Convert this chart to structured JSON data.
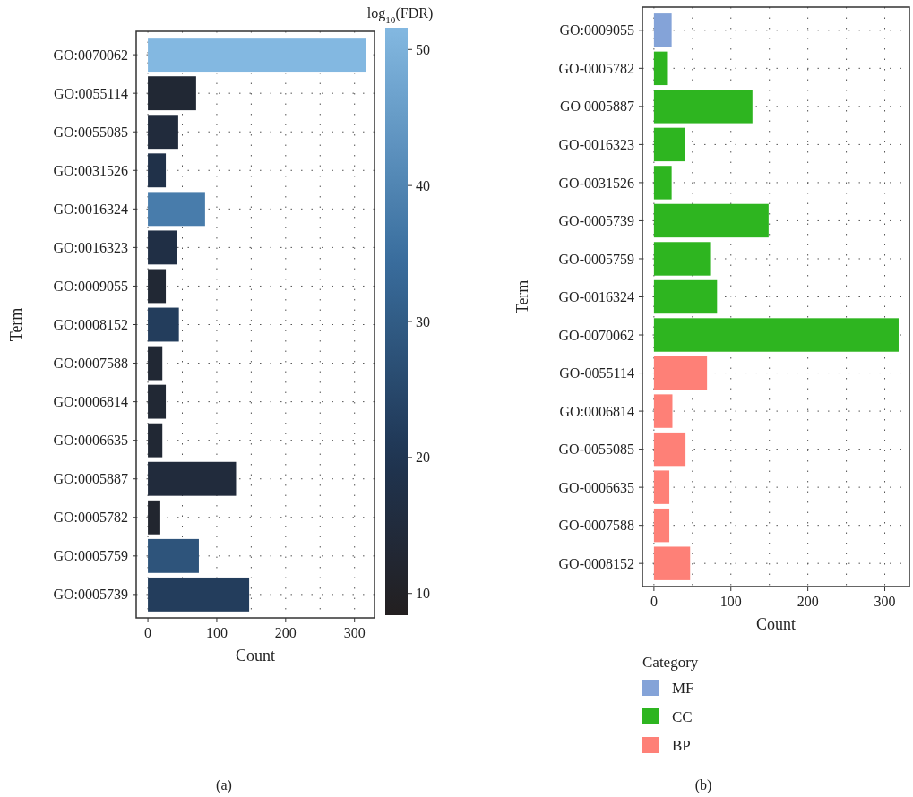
{
  "chart_data": [
    {
      "type": "bar",
      "orientation": "horizontal",
      "xlabel": "Count",
      "ylabel": "Term",
      "clabel": "−log$_{10}$(FDR)",
      "categories": [
        "GO:0070062",
        "GO:0055114",
        "GO:0055085",
        "GO:0031526",
        "GO:0016324",
        "GO:0016323",
        "GO:0009055",
        "GO:0008152",
        "GO:0007588",
        "GO:0006814",
        "GO:0006635",
        "GO:0005887",
        "GO:0005782",
        "GO:0005759",
        "GO:0005739"
      ],
      "values": [
        316,
        70,
        44,
        26,
        83,
        42,
        26,
        45,
        21,
        26,
        21,
        128,
        18,
        74,
        147
      ],
      "cvalues": [
        51.6,
        13,
        15,
        18,
        38,
        17,
        13,
        22,
        13,
        13,
        13,
        15,
        12,
        28,
        22
      ],
      "clim": [
        8.4,
        51.6
      ],
      "cticks": [
        10,
        20,
        30,
        40,
        50
      ],
      "xlim": [
        -17,
        329
      ],
      "xticks": [
        0,
        100,
        200,
        300
      ],
      "grid": true,
      "annotations": [
        "(a)"
      ]
    },
    {
      "type": "bar",
      "orientation": "horizontal",
      "xlabel": "Count",
      "ylabel": "Term",
      "legend_title": "Category",
      "legend": "bottom",
      "categories": [
        "GO:0009055",
        "GO-0005782",
        "GO 0005887",
        "GO-0016323",
        "GO-0031526",
        "GO-0005739",
        "GO-0005759",
        "GO-0016324",
        "GO-0070062",
        "GO-0055114",
        "GO:0006814",
        "GO-0055085",
        "GO-0006635",
        "GO-0007588",
        "GO-0008152"
      ],
      "series": [
        {
          "name": "MF",
          "color": "#84a3d8",
          "values": [
            23,
            null,
            null,
            null,
            null,
            null,
            null,
            null,
            null,
            null,
            null,
            null,
            null,
            null,
            null
          ]
        },
        {
          "name": "CC",
          "color": "#2eb520",
          "values": [
            null,
            17,
            128,
            40,
            23,
            149,
            73,
            82,
            318,
            null,
            null,
            null,
            null,
            null,
            null
          ]
        },
        {
          "name": "BP",
          "color": "#fe8077",
          "values": [
            null,
            null,
            null,
            null,
            null,
            null,
            null,
            null,
            null,
            69,
            24,
            41,
            20,
            20,
            47
          ]
        }
      ],
      "xlim": [
        -15,
        332
      ],
      "xticks": [
        0,
        100,
        200,
        300
      ],
      "grid": true,
      "annotations": [
        "(b)"
      ]
    }
  ]
}
